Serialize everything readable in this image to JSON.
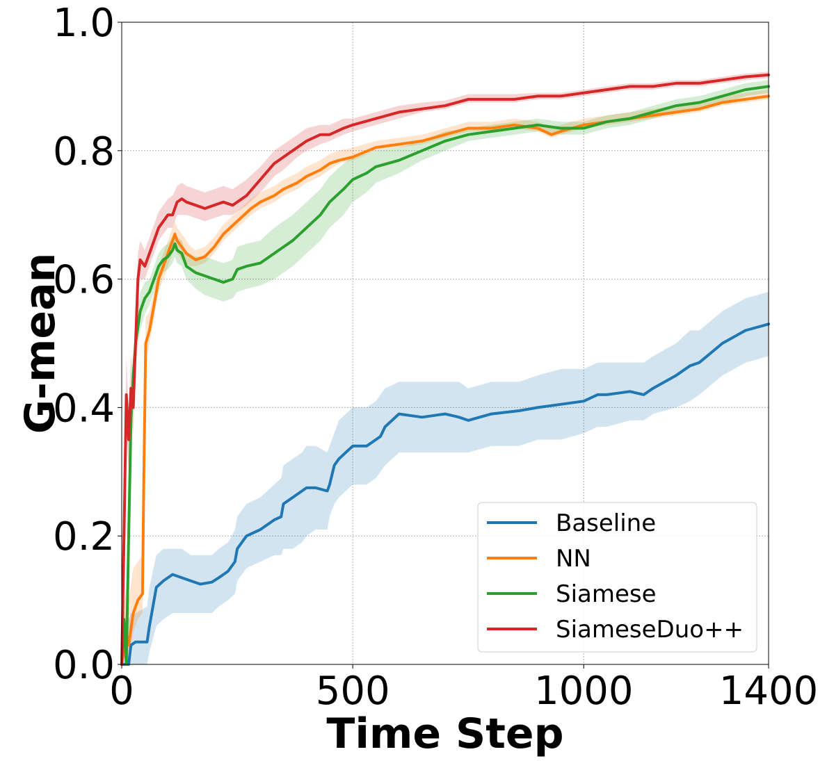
{
  "chart_data": {
    "type": "line",
    "title": "",
    "xlabel": "Time Step",
    "ylabel": "G-mean",
    "xlim": [
      0,
      1400
    ],
    "ylim": [
      0.0,
      1.0
    ],
    "xticks": [
      0,
      500,
      1000,
      1400
    ],
    "xtick_labels": [
      "0",
      "500",
      "1000",
      "1400"
    ],
    "yticks": [
      0.0,
      0.2,
      0.4,
      0.6,
      0.8,
      1.0
    ],
    "ytick_labels": [
      "0.0",
      "0.2",
      "0.4",
      "0.6",
      "0.8",
      "1.0"
    ],
    "grid": true,
    "legend_position": "bottom-right",
    "series": [
      {
        "name": "Baseline",
        "color": "#1f77b4",
        "x": [
          0,
          15,
          20,
          30,
          55,
          60,
          75,
          90,
          110,
          130,
          150,
          170,
          195,
          210,
          230,
          245,
          250,
          270,
          300,
          330,
          345,
          350,
          370,
          390,
          400,
          420,
          445,
          450,
          460,
          470,
          500,
          530,
          550,
          560,
          570,
          600,
          650,
          700,
          730,
          750,
          800,
          860,
          900,
          950,
          1000,
          1030,
          1050,
          1100,
          1130,
          1150,
          1200,
          1230,
          1250,
          1300,
          1350,
          1400
        ],
        "y": [
          0.0,
          0.0,
          0.03,
          0.035,
          0.035,
          0.06,
          0.12,
          0.13,
          0.14,
          0.135,
          0.13,
          0.125,
          0.128,
          0.135,
          0.145,
          0.16,
          0.18,
          0.2,
          0.21,
          0.225,
          0.23,
          0.25,
          0.26,
          0.27,
          0.275,
          0.275,
          0.27,
          0.28,
          0.31,
          0.32,
          0.34,
          0.34,
          0.35,
          0.355,
          0.37,
          0.39,
          0.385,
          0.39,
          0.385,
          0.38,
          0.39,
          0.395,
          0.4,
          0.405,
          0.41,
          0.42,
          0.42,
          0.425,
          0.42,
          0.43,
          0.45,
          0.465,
          0.47,
          0.5,
          0.52,
          0.53
        ],
        "lower": [
          0.0,
          0.0,
          0.0,
          0.0,
          0.0,
          0.02,
          0.06,
          0.07,
          0.08,
          0.08,
          0.08,
          0.08,
          0.08,
          0.09,
          0.1,
          0.11,
          0.13,
          0.15,
          0.16,
          0.17,
          0.17,
          0.18,
          0.18,
          0.19,
          0.2,
          0.21,
          0.21,
          0.23,
          0.25,
          0.26,
          0.28,
          0.28,
          0.29,
          0.3,
          0.31,
          0.33,
          0.33,
          0.33,
          0.33,
          0.33,
          0.34,
          0.34,
          0.35,
          0.35,
          0.36,
          0.37,
          0.37,
          0.38,
          0.38,
          0.39,
          0.4,
          0.41,
          0.42,
          0.45,
          0.47,
          0.48
        ],
        "upper": [
          0.05,
          0.07,
          0.08,
          0.08,
          0.09,
          0.12,
          0.17,
          0.18,
          0.18,
          0.18,
          0.17,
          0.17,
          0.17,
          0.18,
          0.19,
          0.21,
          0.23,
          0.25,
          0.26,
          0.28,
          0.29,
          0.31,
          0.32,
          0.33,
          0.34,
          0.34,
          0.33,
          0.34,
          0.36,
          0.38,
          0.4,
          0.4,
          0.41,
          0.42,
          0.43,
          0.44,
          0.44,
          0.44,
          0.44,
          0.43,
          0.44,
          0.44,
          0.45,
          0.46,
          0.46,
          0.47,
          0.47,
          0.47,
          0.47,
          0.48,
          0.5,
          0.52,
          0.52,
          0.55,
          0.57,
          0.58
        ]
      },
      {
        "name": "NN",
        "color": "#ff7f0e",
        "x": [
          0,
          10,
          15,
          25,
          35,
          45,
          48,
          52,
          60,
          70,
          80,
          90,
          100,
          110,
          115,
          120,
          130,
          140,
          150,
          160,
          180,
          200,
          220,
          250,
          280,
          300,
          330,
          350,
          380,
          400,
          430,
          450,
          470,
          500,
          550,
          600,
          650,
          700,
          750,
          800,
          850,
          900,
          930,
          950,
          1000,
          1050,
          1100,
          1150,
          1200,
          1250,
          1300,
          1350,
          1400
        ],
        "y": [
          0.0,
          0.05,
          0.03,
          0.08,
          0.1,
          0.11,
          0.3,
          0.5,
          0.52,
          0.56,
          0.6,
          0.62,
          0.64,
          0.66,
          0.67,
          0.66,
          0.65,
          0.64,
          0.635,
          0.63,
          0.635,
          0.65,
          0.67,
          0.69,
          0.71,
          0.72,
          0.73,
          0.74,
          0.75,
          0.76,
          0.77,
          0.78,
          0.785,
          0.79,
          0.805,
          0.81,
          0.815,
          0.825,
          0.835,
          0.835,
          0.84,
          0.835,
          0.825,
          0.83,
          0.84,
          0.845,
          0.85,
          0.855,
          0.86,
          0.865,
          0.875,
          0.88,
          0.885
        ],
        "lower": [
          0.0,
          0.02,
          0.0,
          0.05,
          0.07,
          0.08,
          0.25,
          0.47,
          0.5,
          0.54,
          0.58,
          0.6,
          0.62,
          0.64,
          0.65,
          0.64,
          0.63,
          0.625,
          0.62,
          0.62,
          0.625,
          0.64,
          0.66,
          0.68,
          0.7,
          0.71,
          0.72,
          0.73,
          0.74,
          0.75,
          0.76,
          0.77,
          0.78,
          0.785,
          0.8,
          0.805,
          0.81,
          0.82,
          0.83,
          0.83,
          0.835,
          0.83,
          0.82,
          0.825,
          0.835,
          0.84,
          0.845,
          0.85,
          0.855,
          0.86,
          0.87,
          0.875,
          0.88
        ],
        "upper": [
          0.07,
          0.12,
          0.1,
          0.15,
          0.16,
          0.17,
          0.36,
          0.54,
          0.55,
          0.58,
          0.62,
          0.64,
          0.66,
          0.68,
          0.69,
          0.68,
          0.67,
          0.66,
          0.65,
          0.645,
          0.65,
          0.665,
          0.685,
          0.705,
          0.725,
          0.735,
          0.745,
          0.755,
          0.765,
          0.775,
          0.785,
          0.795,
          0.8,
          0.805,
          0.815,
          0.82,
          0.825,
          0.835,
          0.845,
          0.845,
          0.85,
          0.845,
          0.835,
          0.84,
          0.85,
          0.855,
          0.86,
          0.865,
          0.87,
          0.875,
          0.885,
          0.89,
          0.895
        ]
      },
      {
        "name": "Siamese",
        "color": "#2ca02c",
        "x": [
          0,
          5,
          10,
          15,
          20,
          25,
          30,
          40,
          50,
          60,
          70,
          80,
          90,
          100,
          110,
          115,
          120,
          130,
          140,
          160,
          180,
          200,
          220,
          240,
          250,
          270,
          300,
          330,
          350,
          370,
          400,
          430,
          450,
          480,
          500,
          530,
          550,
          600,
          650,
          700,
          750,
          800,
          850,
          900,
          950,
          1000,
          1050,
          1100,
          1150,
          1200,
          1250,
          1300,
          1350,
          1400
        ],
        "y": [
          0.0,
          0.07,
          0.0,
          0.2,
          0.38,
          0.45,
          0.5,
          0.55,
          0.57,
          0.58,
          0.6,
          0.62,
          0.63,
          0.635,
          0.645,
          0.655,
          0.645,
          0.64,
          0.62,
          0.61,
          0.605,
          0.6,
          0.595,
          0.6,
          0.615,
          0.62,
          0.625,
          0.64,
          0.65,
          0.66,
          0.68,
          0.7,
          0.72,
          0.74,
          0.755,
          0.765,
          0.775,
          0.785,
          0.8,
          0.815,
          0.825,
          0.83,
          0.835,
          0.84,
          0.835,
          0.835,
          0.845,
          0.85,
          0.86,
          0.87,
          0.875,
          0.885,
          0.895,
          0.9
        ],
        "lower": [
          0.0,
          0.03,
          0.0,
          0.16,
          0.34,
          0.42,
          0.47,
          0.52,
          0.545,
          0.56,
          0.58,
          0.6,
          0.61,
          0.615,
          0.625,
          0.635,
          0.625,
          0.62,
          0.6,
          0.585,
          0.575,
          0.57,
          0.565,
          0.57,
          0.58,
          0.585,
          0.59,
          0.6,
          0.61,
          0.62,
          0.64,
          0.66,
          0.68,
          0.7,
          0.72,
          0.735,
          0.75,
          0.765,
          0.785,
          0.8,
          0.815,
          0.82,
          0.825,
          0.83,
          0.825,
          0.825,
          0.835,
          0.84,
          0.85,
          0.86,
          0.865,
          0.875,
          0.885,
          0.89
        ],
        "upper": [
          0.03,
          0.11,
          0.05,
          0.24,
          0.42,
          0.48,
          0.53,
          0.58,
          0.595,
          0.6,
          0.62,
          0.64,
          0.65,
          0.655,
          0.665,
          0.675,
          0.665,
          0.66,
          0.64,
          0.635,
          0.635,
          0.63,
          0.625,
          0.63,
          0.65,
          0.655,
          0.66,
          0.68,
          0.69,
          0.7,
          0.72,
          0.74,
          0.76,
          0.78,
          0.79,
          0.795,
          0.8,
          0.805,
          0.815,
          0.83,
          0.835,
          0.84,
          0.845,
          0.85,
          0.845,
          0.845,
          0.855,
          0.86,
          0.87,
          0.88,
          0.885,
          0.895,
          0.905,
          0.91
        ]
      },
      {
        "name": "SiameseDuo++",
        "color": "#d62728",
        "x": [
          0,
          5,
          10,
          15,
          20,
          25,
          30,
          35,
          40,
          50,
          60,
          70,
          80,
          90,
          100,
          110,
          120,
          130,
          140,
          160,
          180,
          200,
          220,
          240,
          250,
          270,
          300,
          330,
          350,
          380,
          400,
          430,
          450,
          480,
          500,
          550,
          600,
          650,
          700,
          750,
          800,
          850,
          900,
          950,
          1000,
          1050,
          1100,
          1150,
          1200,
          1250,
          1300,
          1350,
          1400
        ],
        "y": [
          0.0,
          0.2,
          0.42,
          0.35,
          0.43,
          0.4,
          0.5,
          0.6,
          0.63,
          0.62,
          0.64,
          0.66,
          0.68,
          0.69,
          0.7,
          0.7,
          0.72,
          0.725,
          0.72,
          0.715,
          0.71,
          0.715,
          0.72,
          0.715,
          0.72,
          0.73,
          0.755,
          0.78,
          0.79,
          0.805,
          0.815,
          0.825,
          0.825,
          0.835,
          0.84,
          0.85,
          0.86,
          0.865,
          0.87,
          0.88,
          0.88,
          0.88,
          0.885,
          0.885,
          0.89,
          0.895,
          0.9,
          0.9,
          0.905,
          0.905,
          0.91,
          0.915,
          0.918
        ],
        "lower": [
          0.0,
          0.15,
          0.36,
          0.3,
          0.38,
          0.36,
          0.46,
          0.56,
          0.6,
          0.6,
          0.62,
          0.64,
          0.66,
          0.67,
          0.68,
          0.68,
          0.7,
          0.7,
          0.7,
          0.695,
          0.69,
          0.695,
          0.7,
          0.7,
          0.705,
          0.715,
          0.735,
          0.76,
          0.77,
          0.79,
          0.8,
          0.81,
          0.815,
          0.825,
          0.83,
          0.84,
          0.85,
          0.86,
          0.865,
          0.875,
          0.875,
          0.875,
          0.88,
          0.88,
          0.885,
          0.89,
          0.895,
          0.895,
          0.9,
          0.9,
          0.905,
          0.91,
          0.913
        ],
        "upper": [
          0.04,
          0.25,
          0.48,
          0.4,
          0.48,
          0.45,
          0.55,
          0.64,
          0.66,
          0.645,
          0.665,
          0.685,
          0.705,
          0.715,
          0.725,
          0.73,
          0.745,
          0.75,
          0.745,
          0.74,
          0.735,
          0.74,
          0.745,
          0.74,
          0.745,
          0.755,
          0.775,
          0.8,
          0.81,
          0.825,
          0.835,
          0.84,
          0.84,
          0.85,
          0.85,
          0.86,
          0.87,
          0.875,
          0.878,
          0.888,
          0.888,
          0.888,
          0.89,
          0.89,
          0.895,
          0.9,
          0.905,
          0.905,
          0.91,
          0.91,
          0.915,
          0.92,
          0.923
        ]
      }
    ]
  }
}
